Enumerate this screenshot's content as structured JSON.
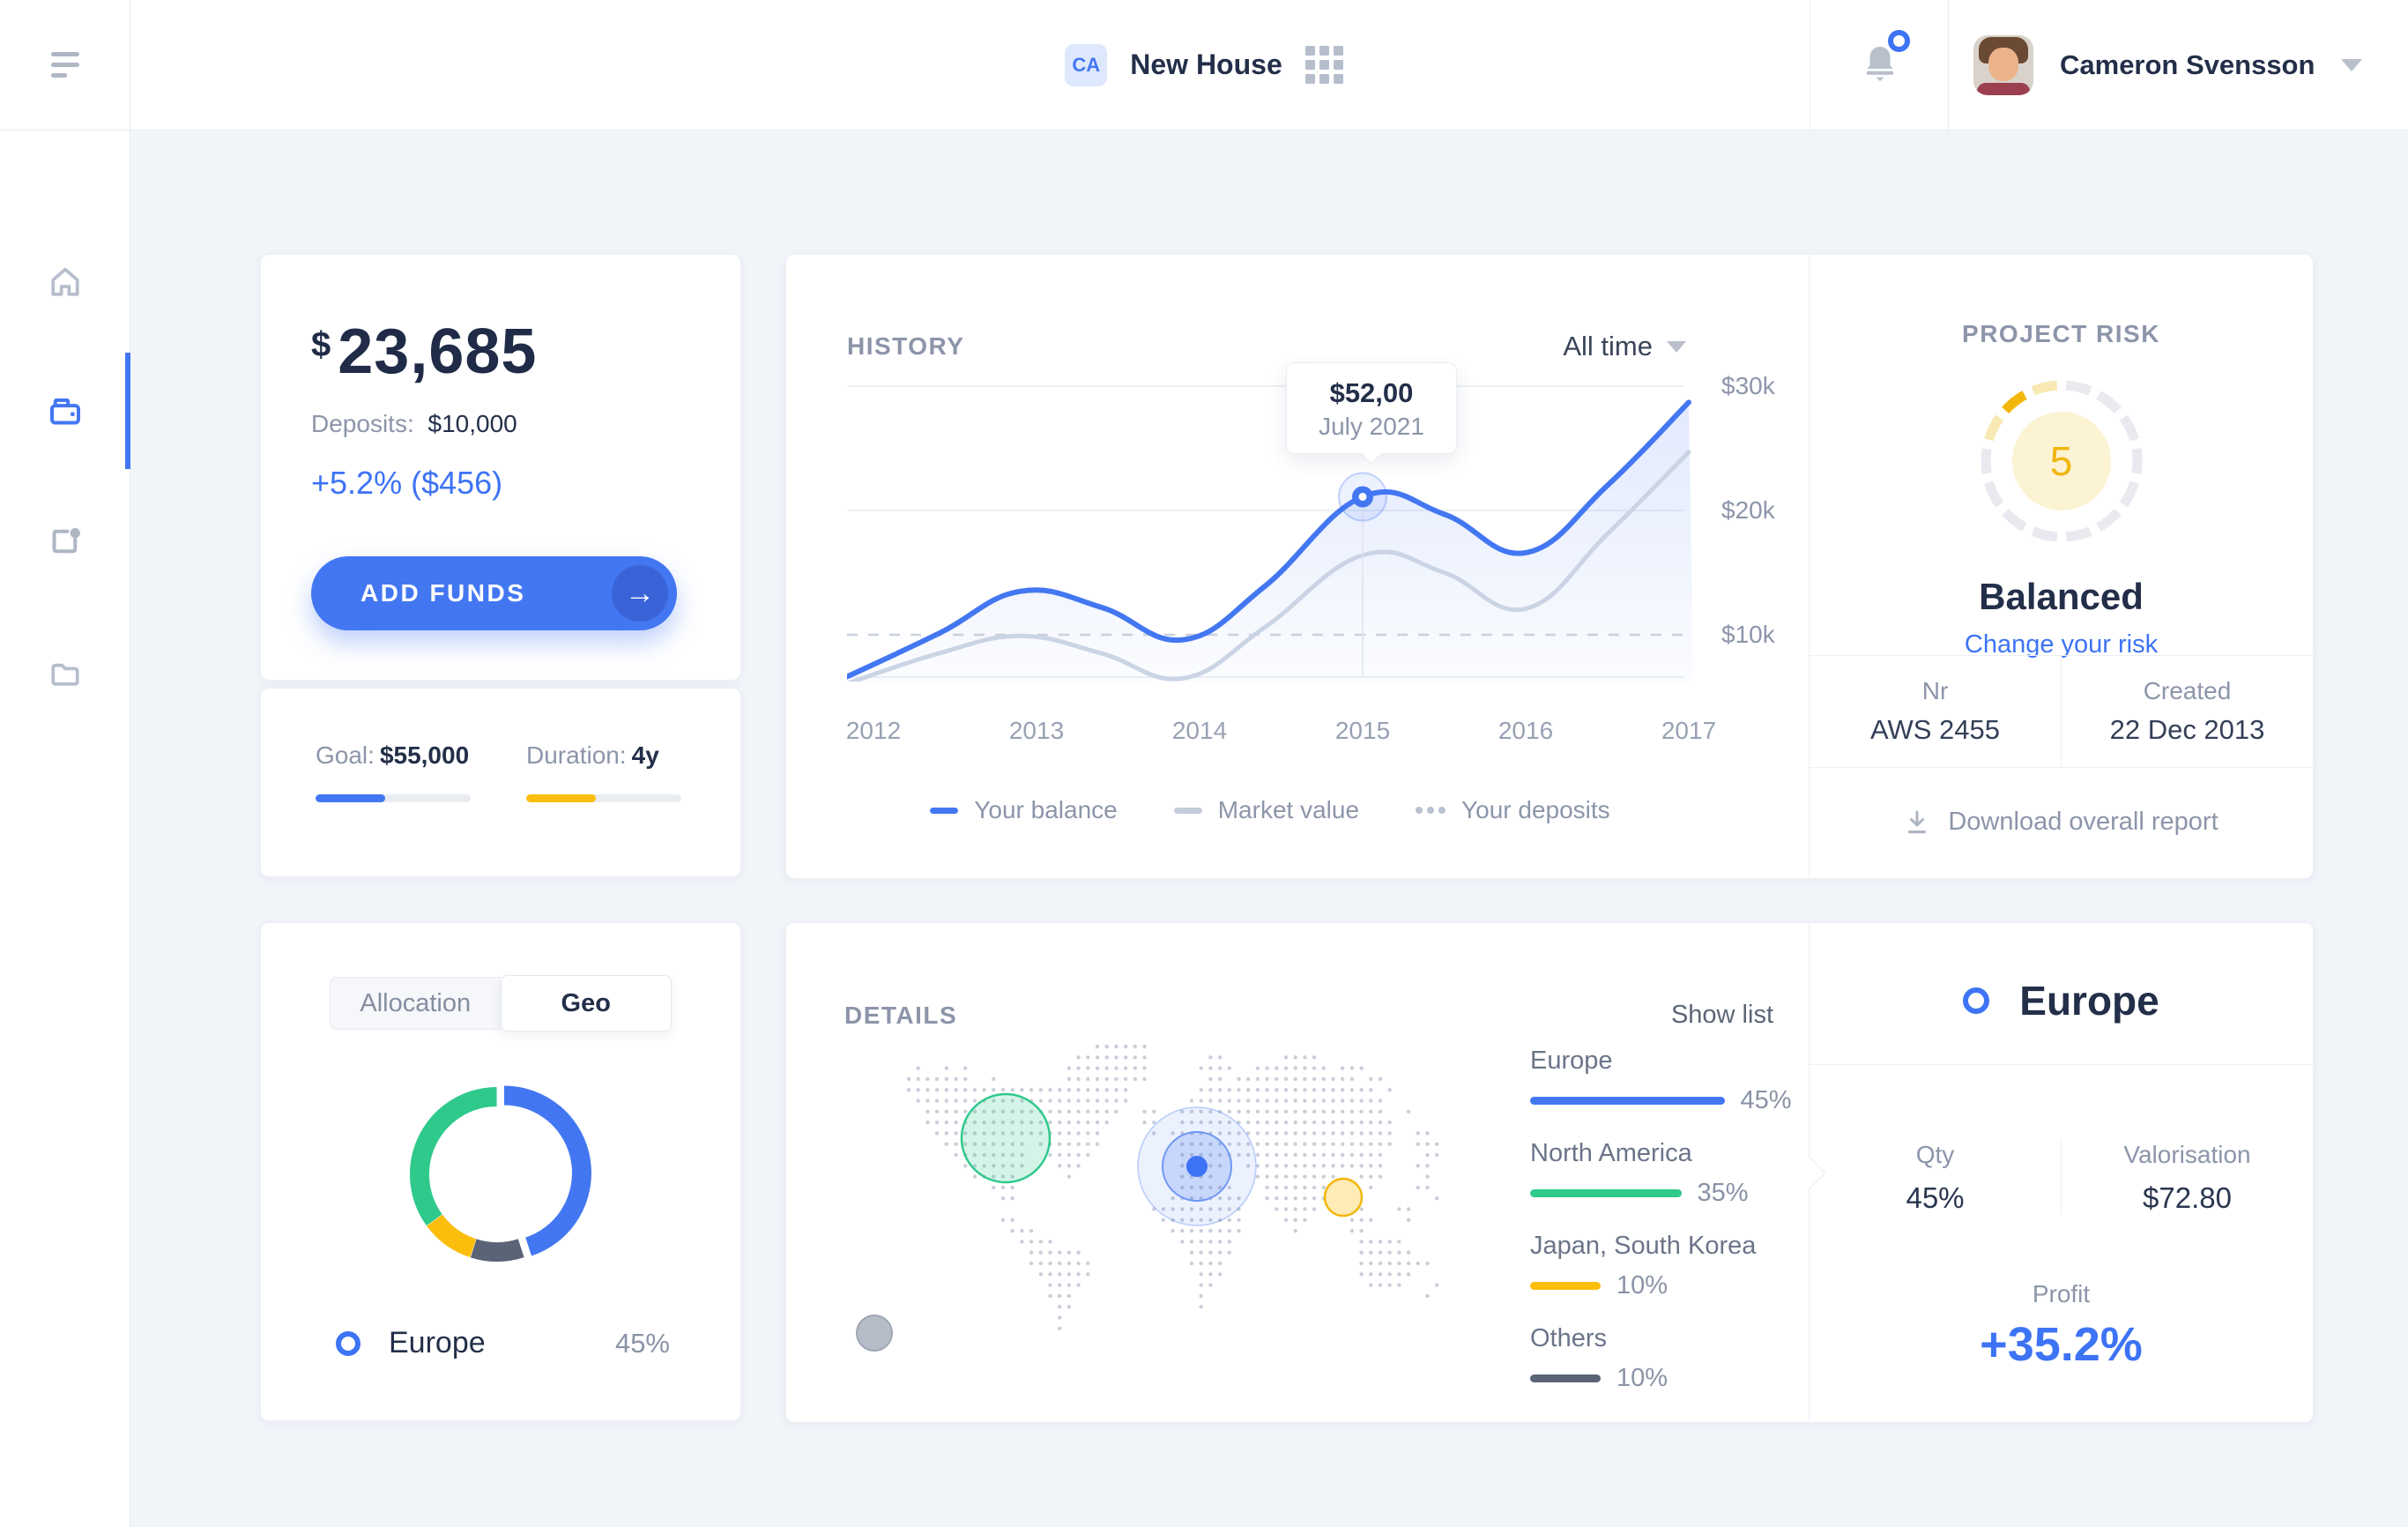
{
  "topbar": {
    "workspace_badge": "CA",
    "workspace_title": "New House",
    "user_name": "Cameron Svensson"
  },
  "sidebar": {
    "items": [
      {
        "icon": "home-icon",
        "active": false
      },
      {
        "icon": "wallet-icon",
        "active": true
      },
      {
        "icon": "report-icon",
        "active": false
      },
      {
        "icon": "folder-icon",
        "active": false
      }
    ]
  },
  "balance": {
    "currency": "$",
    "amount": "23,685",
    "deposits_label": "Deposits:",
    "deposits_value": "$10,000",
    "change": "+5.2% ($456)",
    "add_funds_label": "ADD FUNDS",
    "goal_label": "Goal:",
    "goal_value": "$55,000",
    "goal_progress_pct": 45,
    "goal_color": "#4377F2",
    "duration_label": "Duration:",
    "duration_value": "4y",
    "duration_progress_pct": 45,
    "duration_color": "#FBBE0C"
  },
  "history": {
    "title": "HISTORY",
    "range_label": "All time",
    "tooltip": {
      "value": "$52,00",
      "date": "July 2021"
    },
    "legend": [
      {
        "label": "Your balance"
      },
      {
        "label": "Market value"
      },
      {
        "label": "Your deposits"
      }
    ]
  },
  "chart_data": {
    "history": {
      "type": "line",
      "x_labels": [
        "2012",
        "2013",
        "2014",
        "2015",
        "2016",
        "2017"
      ],
      "y_labels": [
        "$30k",
        "$20k",
        "$10k"
      ],
      "y_values_k": [
        30,
        20,
        10
      ],
      "ylim_k": [
        0,
        32
      ],
      "grid": true,
      "legend_position": "bottom",
      "x_years": [
        2011.8,
        2012.4,
        2012.9,
        2013.4,
        2013.9,
        2014.4,
        2015,
        2015.5,
        2016,
        2016.5,
        2017
      ],
      "series": [
        {
          "name": "Your balance",
          "color": "#4377F2",
          "style": "solid",
          "area": true,
          "values_k": [
            6.4,
            10.1,
            13.5,
            12.2,
            9.6,
            13.9,
            21.1,
            19.7,
            16.6,
            22.0,
            28.7
          ]
        },
        {
          "name": "Market value",
          "color": "#CBD4E4",
          "style": "solid",
          "area": false,
          "values_k": [
            5.9,
            8.5,
            9.9,
            8.5,
            6.5,
            10.6,
            16.4,
            15.0,
            12.1,
            18.1,
            24.7
          ]
        },
        {
          "name": "Your deposits",
          "color": "#C9D1DE",
          "style": "dashed",
          "area": false,
          "values_k": [
            10,
            10,
            10,
            10,
            10,
            10,
            10,
            10,
            10,
            10,
            10
          ]
        }
      ],
      "marker": {
        "series": "Your balance",
        "x_year": 2015,
        "value_k": 21.1
      }
    },
    "allocation_donut": {
      "type": "donut",
      "segments": [
        {
          "label": "Europe",
          "value": 45,
          "color": "#4377F2",
          "offset": true
        },
        {
          "label": "Others",
          "value": 10,
          "color": "#5B6477",
          "offset": false
        },
        {
          "label": "Japan, South Korea",
          "value": 10,
          "color": "#FBBE0C",
          "offset": false
        },
        {
          "label": "North America",
          "value": 35,
          "color": "#2FC98C",
          "offset": false
        }
      ]
    },
    "geo_bars": {
      "type": "bar",
      "items": [
        {
          "label": "Europe",
          "pct": 45,
          "color": "#4377F2"
        },
        {
          "label": "North America",
          "pct": 35,
          "color": "#2FC98C"
        },
        {
          "label": "Japan, South Korea",
          "pct": 10,
          "color": "#FBBE0C"
        },
        {
          "label": "Others",
          "pct": 10,
          "color": "#5B6477"
        }
      ]
    }
  },
  "project_risk": {
    "title": "PROJECT RISK",
    "level": "5",
    "level_label": "Balanced",
    "change_link": "Change your risk",
    "nr_label": "Nr",
    "nr_value": "AWS 2455",
    "created_label": "Created",
    "created_value": "22 Dec 2013",
    "download_label": "Download overall report",
    "gauge": {
      "segments": 14,
      "default_color": "#E8EAEF",
      "highlights": {
        "11": "#F8E9B4",
        "12": "#F2B70A",
        "13": "#F8E9B4"
      },
      "inner_color": "#FCF3D2",
      "number_color": "#EFB60F"
    }
  },
  "allocation_card": {
    "tabs": [
      {
        "label": "Allocation",
        "active": false
      },
      {
        "label": "Geo",
        "active": true
      }
    ],
    "legend_label": "Europe",
    "legend_value": "45%"
  },
  "details": {
    "title": "DETAILS",
    "show_list_label": "Show list"
  },
  "europe_panel": {
    "title": "Europe",
    "qty_label": "Qty",
    "qty_value": "45%",
    "val_label": "Valorisation",
    "val_value": "$72.80",
    "profit_label": "Profit",
    "profit_value": "+35.2%"
  },
  "colors": {
    "accent_blue": "#4377F2",
    "link_blue": "#3D73F5",
    "green": "#2FC98C",
    "yellow": "#FBBE0C",
    "slate": "#5B6477",
    "text_dark": "#232F49",
    "text_gray": "#8C95A9",
    "background": "#F1F4F9"
  }
}
